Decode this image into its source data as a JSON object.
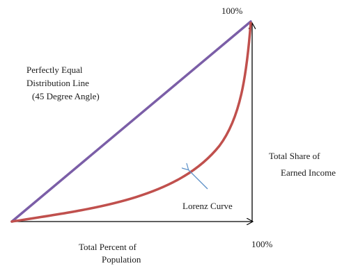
{
  "top_right_label": "100%",
  "bottom_right_label": "100%",
  "equal_line_label": {
    "line1": "Perfectly Equal",
    "line2": "Distribution Line",
    "line3": "(45 Degree Angle)"
  },
  "right_axis_label": {
    "line1": "Total Share of",
    "line2": "Earned Income"
  },
  "bottom_axis_label": {
    "line1": "Total Percent of",
    "line2": "Population"
  },
  "lorenz_label": "Lorenz Curve",
  "colors": {
    "equality_line": "#7b5ea7",
    "lorenz_curve": "#c0504d",
    "axes": "#000000",
    "pointer_arrow": "#5b8fc7"
  }
}
